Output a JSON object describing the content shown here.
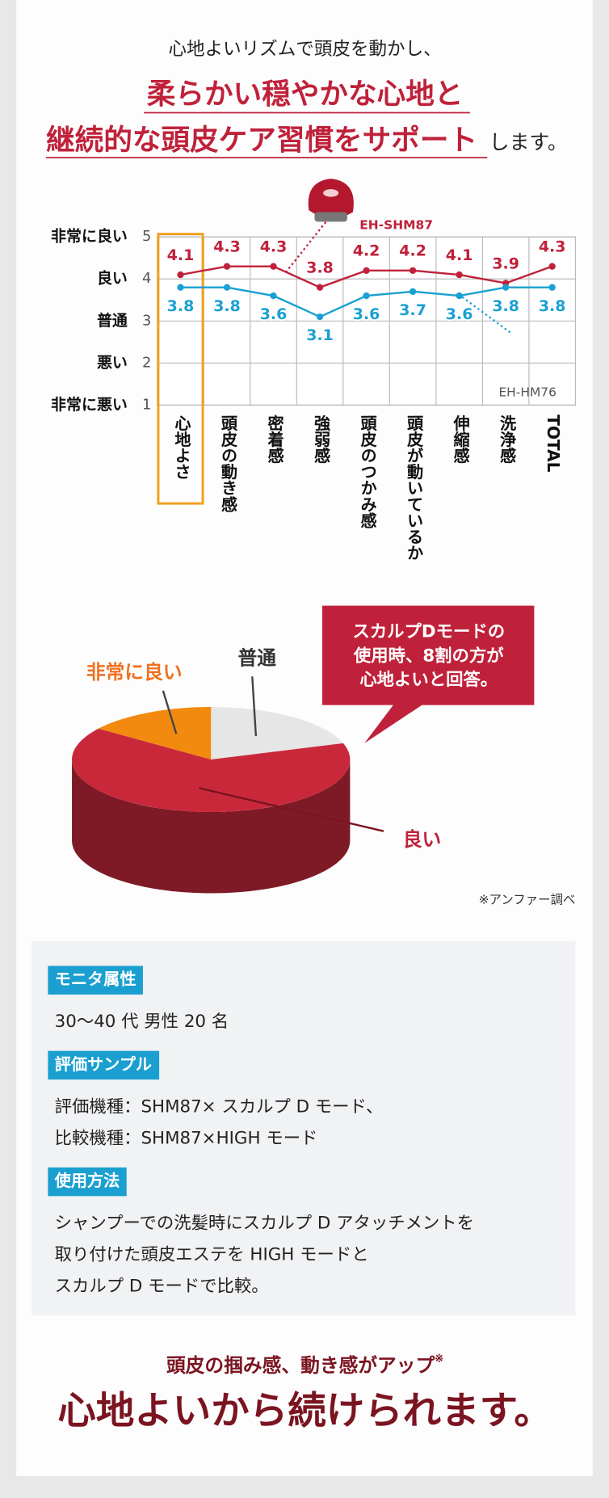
{
  "header": {
    "lead": "心地よいリズムで頭皮を動かし、",
    "headline1": "柔らかい穏やかな心地と",
    "headline2": "継続的な頭皮ケア習慣をサポート",
    "headline2_tail": "します。"
  },
  "chart_data": [
    {
      "type": "line",
      "categories": [
        "心地よさ",
        "頭皮の動き感",
        "密着感",
        "強弱感",
        "頭皮のつかみ感",
        "頭皮が動いているか",
        "伸縮感",
        "洗浄感",
        "TOTAL"
      ],
      "ylim": [
        1,
        5
      ],
      "yticks": [
        1,
        2,
        3,
        4,
        5
      ],
      "ytick_names": [
        "非常に悪い",
        "悪い",
        "普通",
        "良い",
        "非常に良い"
      ],
      "grid": true,
      "series": [
        {
          "name": "EH-SHM87",
          "color": "#c0213a",
          "values": [
            4.1,
            4.3,
            4.3,
            3.8,
            4.2,
            4.2,
            4.1,
            3.9,
            4.3
          ]
        },
        {
          "name": "EH-HM76",
          "color": "#1aa0d2",
          "values": [
            3.8,
            3.8,
            3.6,
            3.1,
            3.6,
            3.7,
            3.6,
            3.8,
            3.8
          ]
        }
      ]
    },
    {
      "type": "pie",
      "categories": [
        "普通",
        "良い",
        "非常に良い"
      ],
      "values": [
        20,
        65,
        15
      ],
      "colors": [
        "#e6e6e6",
        "#c9283b",
        "#f28a10"
      ],
      "callout": [
        "スカルプDモードの",
        "使用時、8割の方が",
        "心地よいと回答。"
      ],
      "note": "※アンファー調べ"
    }
  ],
  "info": [
    {
      "tag": "モニタ属性",
      "lines": [
        "30〜40 代 男性 20 名"
      ]
    },
    {
      "tag": "評価サンプル",
      "lines": [
        "評価機種：SHM87× スカルプ D モード、",
        "比較機種：SHM87×HIGH モード"
      ]
    },
    {
      "tag": "使用方法",
      "lines": [
        "シャンプーでの洗髪時にスカルプ D アタッチメントを",
        "取り付けた頭皮エステを HIGH モードと",
        "スカルプ D モードで比較。"
      ]
    }
  ],
  "footer": {
    "sub": "頭皮の掴み感、動き感がアップ",
    "mark": "※",
    "main": "心地よいから続けられます。"
  }
}
